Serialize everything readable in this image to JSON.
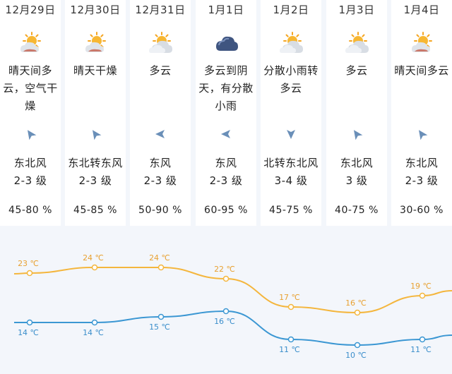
{
  "days": [
    {
      "date": "12月29日",
      "icon": "sun-cloud-icon",
      "desc_lines": [
        "晴天间多",
        "云，空气干",
        "燥"
      ],
      "wind_dir_icon": "wind-arrow-northeast-icon",
      "wind_lines": [
        "东北风",
        "2-3 级"
      ],
      "humidity": "45-80 %",
      "high": 23,
      "low": 14,
      "high_label": "23 ℃",
      "low_label": "14 ℃"
    },
    {
      "date": "12月30日",
      "icon": "sun-cloud-icon",
      "desc_lines": [
        "晴天干燥"
      ],
      "wind_dir_icon": "wind-arrow-northeast-icon",
      "wind_lines": [
        "东北转东风",
        "2-3 级"
      ],
      "humidity": "45-85 %",
      "high": 24,
      "low": 14,
      "high_label": "24 ℃",
      "low_label": "14 ℃"
    },
    {
      "date": "12月31日",
      "icon": "partly-cloudy-icon",
      "desc_lines": [
        "多云"
      ],
      "wind_dir_icon": "wind-arrow-east-icon",
      "wind_lines": [
        "东风",
        "2-3 级"
      ],
      "humidity": "50-90 %",
      "high": 24,
      "low": 15,
      "high_label": "24 ℃",
      "low_label": "15 ℃"
    },
    {
      "date": "1月1日",
      "icon": "dark-cloud-icon",
      "desc_lines": [
        "多云到阴",
        "天，有分散",
        "小雨"
      ],
      "wind_dir_icon": "wind-arrow-east-icon",
      "wind_lines": [
        "东风",
        "2-3 级"
      ],
      "humidity": "60-95 %",
      "high": 22,
      "low": 16,
      "high_label": "22 ℃",
      "low_label": "16 ℃"
    },
    {
      "date": "1月2日",
      "icon": "partly-cloudy-icon",
      "desc_lines": [
        "分散小雨转",
        "多云"
      ],
      "wind_dir_icon": "wind-arrow-north-icon",
      "wind_lines": [
        "北转东北风",
        "3-4 级"
      ],
      "humidity": "45-75 %",
      "high": 17,
      "low": 11,
      "high_label": "17 ℃",
      "low_label": "11 ℃"
    },
    {
      "date": "1月3日",
      "icon": "partly-cloudy-icon",
      "desc_lines": [
        "多云"
      ],
      "wind_dir_icon": "wind-arrow-northeast-icon",
      "wind_lines": [
        "东北风",
        "3 级"
      ],
      "humidity": "40-75 %",
      "high": 16,
      "low": 10,
      "high_label": "16 ℃",
      "low_label": "10 ℃"
    },
    {
      "date": "1月4日",
      "icon": "sun-cloud-icon",
      "desc_lines": [
        "晴天间多云"
      ],
      "wind_dir_icon": "wind-arrow-northeast-icon",
      "wind_lines": [
        "东北风",
        "2-3 级"
      ],
      "humidity": "30-60 %",
      "high": 19,
      "low": 11,
      "high_label": "19 ℃",
      "low_label": "11 ℃"
    }
  ],
  "colors": {
    "high_line": "#f4b63d",
    "high_text": "#e8a132",
    "low_line": "#3b97d3",
    "low_text": "#3b8ecb",
    "dot": "#ffffff",
    "arrow": "#6a8fb8",
    "panel_bg": "#f3f6fb"
  }
}
